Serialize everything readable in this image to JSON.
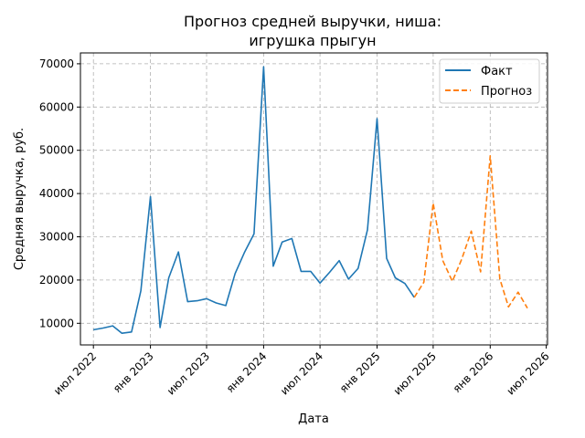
{
  "chart_data": {
    "type": "line",
    "title": "Прогноз средней выручки, ниша:",
    "subtitle": "игрушка прыгун",
    "xlabel": "Дата",
    "ylabel": "Средняя выручка, руб.",
    "x_range": [
      "2022-05-20",
      "2026-07-05"
    ],
    "ylim": [
      5000,
      72500
    ],
    "y_ticks": [
      10000,
      20000,
      30000,
      40000,
      50000,
      60000,
      70000
    ],
    "x_ticks": [
      {
        "date": "2022-07-01",
        "label": "июл 2022"
      },
      {
        "date": "2023-01-01",
        "label": "янв 2023"
      },
      {
        "date": "2023-07-01",
        "label": "июл 2023"
      },
      {
        "date": "2024-01-01",
        "label": "янв 2024"
      },
      {
        "date": "2024-07-01",
        "label": "июл 2024"
      },
      {
        "date": "2025-01-01",
        "label": "янв 2025"
      },
      {
        "date": "2025-07-01",
        "label": "июл 2025"
      },
      {
        "date": "2026-01-01",
        "label": "янв 2026"
      },
      {
        "date": "2026-07-01",
        "label": "июл 2026"
      }
    ],
    "grid": true,
    "legend_position": "top-right",
    "series": [
      {
        "name": "Факт",
        "color": "#1f77b4",
        "style": "solid",
        "points": [
          [
            "2022-07-01",
            8500
          ],
          [
            "2022-08-01",
            8900
          ],
          [
            "2022-09-01",
            9400
          ],
          [
            "2022-10-01",
            7700
          ],
          [
            "2022-11-01",
            8000
          ],
          [
            "2022-12-01",
            17500
          ],
          [
            "2023-01-01",
            39300
          ],
          [
            "2023-02-01",
            9000
          ],
          [
            "2023-03-01",
            20500
          ],
          [
            "2023-04-01",
            26500
          ],
          [
            "2023-05-01",
            15000
          ],
          [
            "2023-06-01",
            15200
          ],
          [
            "2023-07-01",
            15700
          ],
          [
            "2023-08-01",
            14700
          ],
          [
            "2023-09-01",
            14100
          ],
          [
            "2023-10-01",
            21500
          ],
          [
            "2023-11-01",
            26500
          ],
          [
            "2023-12-01",
            30700
          ],
          [
            "2024-01-01",
            69300
          ],
          [
            "2024-02-01",
            23200
          ],
          [
            "2024-03-01",
            28800
          ],
          [
            "2024-04-01",
            29600
          ],
          [
            "2024-05-01",
            22000
          ],
          [
            "2024-06-01",
            22000
          ],
          [
            "2024-07-01",
            19300
          ],
          [
            "2024-08-01",
            21800
          ],
          [
            "2024-09-01",
            24500
          ],
          [
            "2024-10-01",
            20200
          ],
          [
            "2024-11-01",
            22700
          ],
          [
            "2024-12-01",
            31600
          ],
          [
            "2025-01-01",
            57300
          ],
          [
            "2025-02-01",
            25000
          ],
          [
            "2025-03-01",
            20500
          ],
          [
            "2025-04-01",
            19200
          ],
          [
            "2025-05-01",
            16000
          ]
        ]
      },
      {
        "name": "Прогноз",
        "color": "#ff7f0e",
        "style": "dashed",
        "points": [
          [
            "2025-05-01",
            16000
          ],
          [
            "2025-06-01",
            19500
          ],
          [
            "2025-07-01",
            37800
          ],
          [
            "2025-08-01",
            24500
          ],
          [
            "2025-09-01",
            19700
          ],
          [
            "2025-10-01",
            24800
          ],
          [
            "2025-11-01",
            31300
          ],
          [
            "2025-12-01",
            21900
          ],
          [
            "2026-01-01",
            48700
          ],
          [
            "2026-02-01",
            20300
          ],
          [
            "2026-03-01",
            13800
          ],
          [
            "2026-04-01",
            17200
          ],
          [
            "2026-05-01",
            13500
          ]
        ]
      }
    ]
  }
}
